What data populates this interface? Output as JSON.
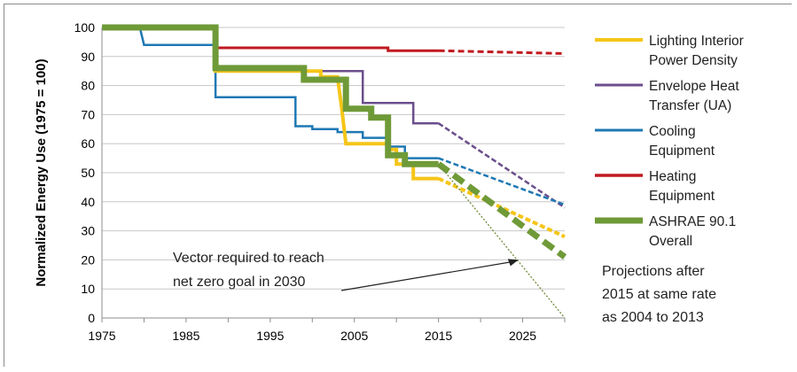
{
  "chart_data": {
    "type": "line",
    "ylabel": "Normalized Energy Use (1975 = 100)",
    "xlim": [
      1975,
      2030
    ],
    "ylim": [
      0,
      100
    ],
    "x_ticks": [
      1975,
      1985,
      1995,
      2005,
      2015,
      2025
    ],
    "y_ticks": [
      0,
      10,
      20,
      30,
      40,
      50,
      60,
      70,
      80,
      90,
      100
    ],
    "grid": "horizontal",
    "legend_position": "right",
    "series": [
      {
        "name": "Lighting Interior Power Density",
        "color": "#f5c518",
        "values": [
          [
            1975,
            100
          ],
          [
            1988.5,
            100
          ],
          [
            1988.5,
            85
          ],
          [
            2001,
            85
          ],
          [
            2001,
            83
          ],
          [
            2003,
            83
          ],
          [
            2003.5,
            72
          ],
          [
            2004,
            60
          ],
          [
            2009,
            60
          ],
          [
            2009,
            58
          ],
          [
            2010,
            58
          ],
          [
            2010,
            53
          ],
          [
            2012,
            53
          ],
          [
            2012,
            48
          ],
          [
            2015,
            48
          ]
        ],
        "projection": [
          [
            2015,
            48
          ],
          [
            2030,
            28
          ]
        ]
      },
      {
        "name": "Envelope Heat Transfer (UA)",
        "color": "#6b4e8c",
        "values": [
          [
            1975,
            100
          ],
          [
            1988.5,
            100
          ],
          [
            1988.5,
            85
          ],
          [
            2006,
            85
          ],
          [
            2006,
            74
          ],
          [
            2012,
            74
          ],
          [
            2012,
            67
          ],
          [
            2015,
            67
          ]
        ],
        "projection": [
          [
            2015,
            67
          ],
          [
            2030,
            38
          ]
        ]
      },
      {
        "name": "Cooling Equipment",
        "color": "#1f78b4",
        "values": [
          [
            1975,
            100
          ],
          [
            1979.5,
            100
          ],
          [
            1980,
            94
          ],
          [
            1988.5,
            94
          ],
          [
            1988.5,
            76
          ],
          [
            1998,
            76
          ],
          [
            1998,
            66
          ],
          [
            2000,
            66
          ],
          [
            2000,
            65
          ],
          [
            2003,
            65
          ],
          [
            2003,
            64
          ],
          [
            2006,
            64
          ],
          [
            2006,
            62
          ],
          [
            2009,
            62
          ],
          [
            2009,
            59
          ],
          [
            2011,
            59
          ],
          [
            2011,
            55
          ],
          [
            2015,
            55
          ]
        ],
        "projection": [
          [
            2015,
            55
          ],
          [
            2030,
            39
          ]
        ]
      },
      {
        "name": "Heating Equipment",
        "color": "#c0191f",
        "values": [
          [
            1975,
            100
          ],
          [
            1988.5,
            100
          ],
          [
            1988.5,
            93
          ],
          [
            2009,
            93
          ],
          [
            2009,
            92
          ],
          [
            2015,
            92
          ]
        ],
        "projection": [
          [
            2015,
            92
          ],
          [
            2030,
            91
          ]
        ]
      },
      {
        "name": "ASHRAE 90.1 Overall",
        "color": "#6f9a38",
        "values": [
          [
            1975,
            100
          ],
          [
            1988.5,
            100
          ],
          [
            1988.5,
            86
          ],
          [
            1999,
            86
          ],
          [
            1999,
            82
          ],
          [
            2004,
            82
          ],
          [
            2004,
            72
          ],
          [
            2007,
            72
          ],
          [
            2007,
            69
          ],
          [
            2009,
            69
          ],
          [
            2009,
            56
          ],
          [
            2011,
            56
          ],
          [
            2011,
            53
          ],
          [
            2015,
            53
          ]
        ],
        "projection": [
          [
            2015,
            53
          ],
          [
            2030,
            21
          ]
        ]
      }
    ],
    "net_zero_vector": {
      "color": "#6f8a3a",
      "points": [
        [
          2015,
          53
        ],
        [
          2030,
          0
        ]
      ]
    },
    "annotations": {
      "vector_note_line1": "Vector required  to reach",
      "vector_note_line2": "net zero  goal in 2030",
      "arrow_target": [
        2024.5,
        20
      ],
      "projection_note": [
        "Projections after",
        "2015 at same rate",
        "as 2004 to 2013"
      ]
    }
  }
}
